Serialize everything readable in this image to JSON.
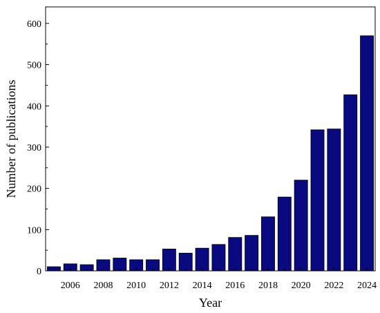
{
  "chart_data": {
    "type": "bar",
    "xlabel": "Year",
    "ylabel": "Number of publications",
    "categories": [
      "2005",
      "2006",
      "2007",
      "2008",
      "2009",
      "2010",
      "2011",
      "2012",
      "2013",
      "2014",
      "2015",
      "2016",
      "2017",
      "2018",
      "2019",
      "2020",
      "2021",
      "2022",
      "2023",
      "2024"
    ],
    "values": [
      10,
      17,
      15,
      27,
      31,
      27,
      27,
      53,
      43,
      55,
      64,
      81,
      86,
      131,
      179,
      220,
      342,
      344,
      427,
      570
    ],
    "xticks": [
      "2006",
      "2008",
      "2010",
      "2012",
      "2014",
      "2016",
      "2018",
      "2020",
      "2022",
      "2024"
    ],
    "yticks": [
      0,
      100,
      200,
      300,
      400,
      500,
      600
    ],
    "ylim": [
      0,
      640
    ],
    "bar_color": "#0a0a80",
    "bar_edge_color": "#000000",
    "grid": false,
    "legend": "none"
  }
}
